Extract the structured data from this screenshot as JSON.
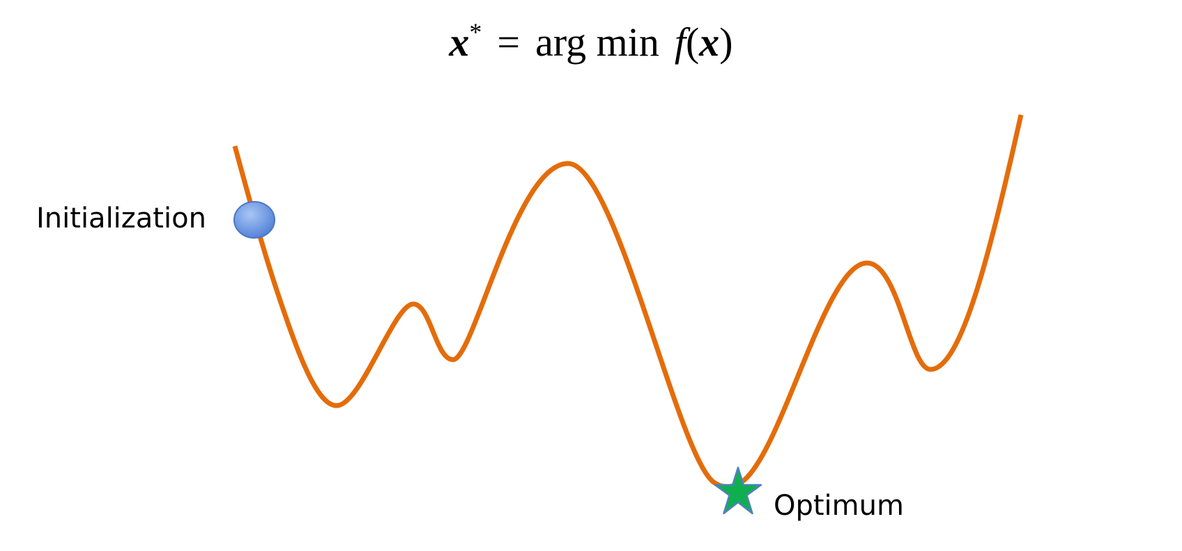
{
  "equation": {
    "lhs_var": "x",
    "lhs_sup": "*",
    "equals": "=",
    "operator": "arg min",
    "func": "f",
    "open_paren": "(",
    "arg_var": "x",
    "close_paren": ")"
  },
  "labels": {
    "start": "Initialization",
    "end": "Optimum"
  },
  "colors": {
    "curve": "#E46C0A",
    "start_marker": "#6A98E0",
    "start_marker_stroke": "#4A78C0",
    "optimum_marker": "#0FAF50",
    "optimum_marker_stroke": "#4F81BD",
    "text": "#000000"
  },
  "icons": {
    "start": "ellipse-point-icon",
    "end": "star-icon"
  }
}
